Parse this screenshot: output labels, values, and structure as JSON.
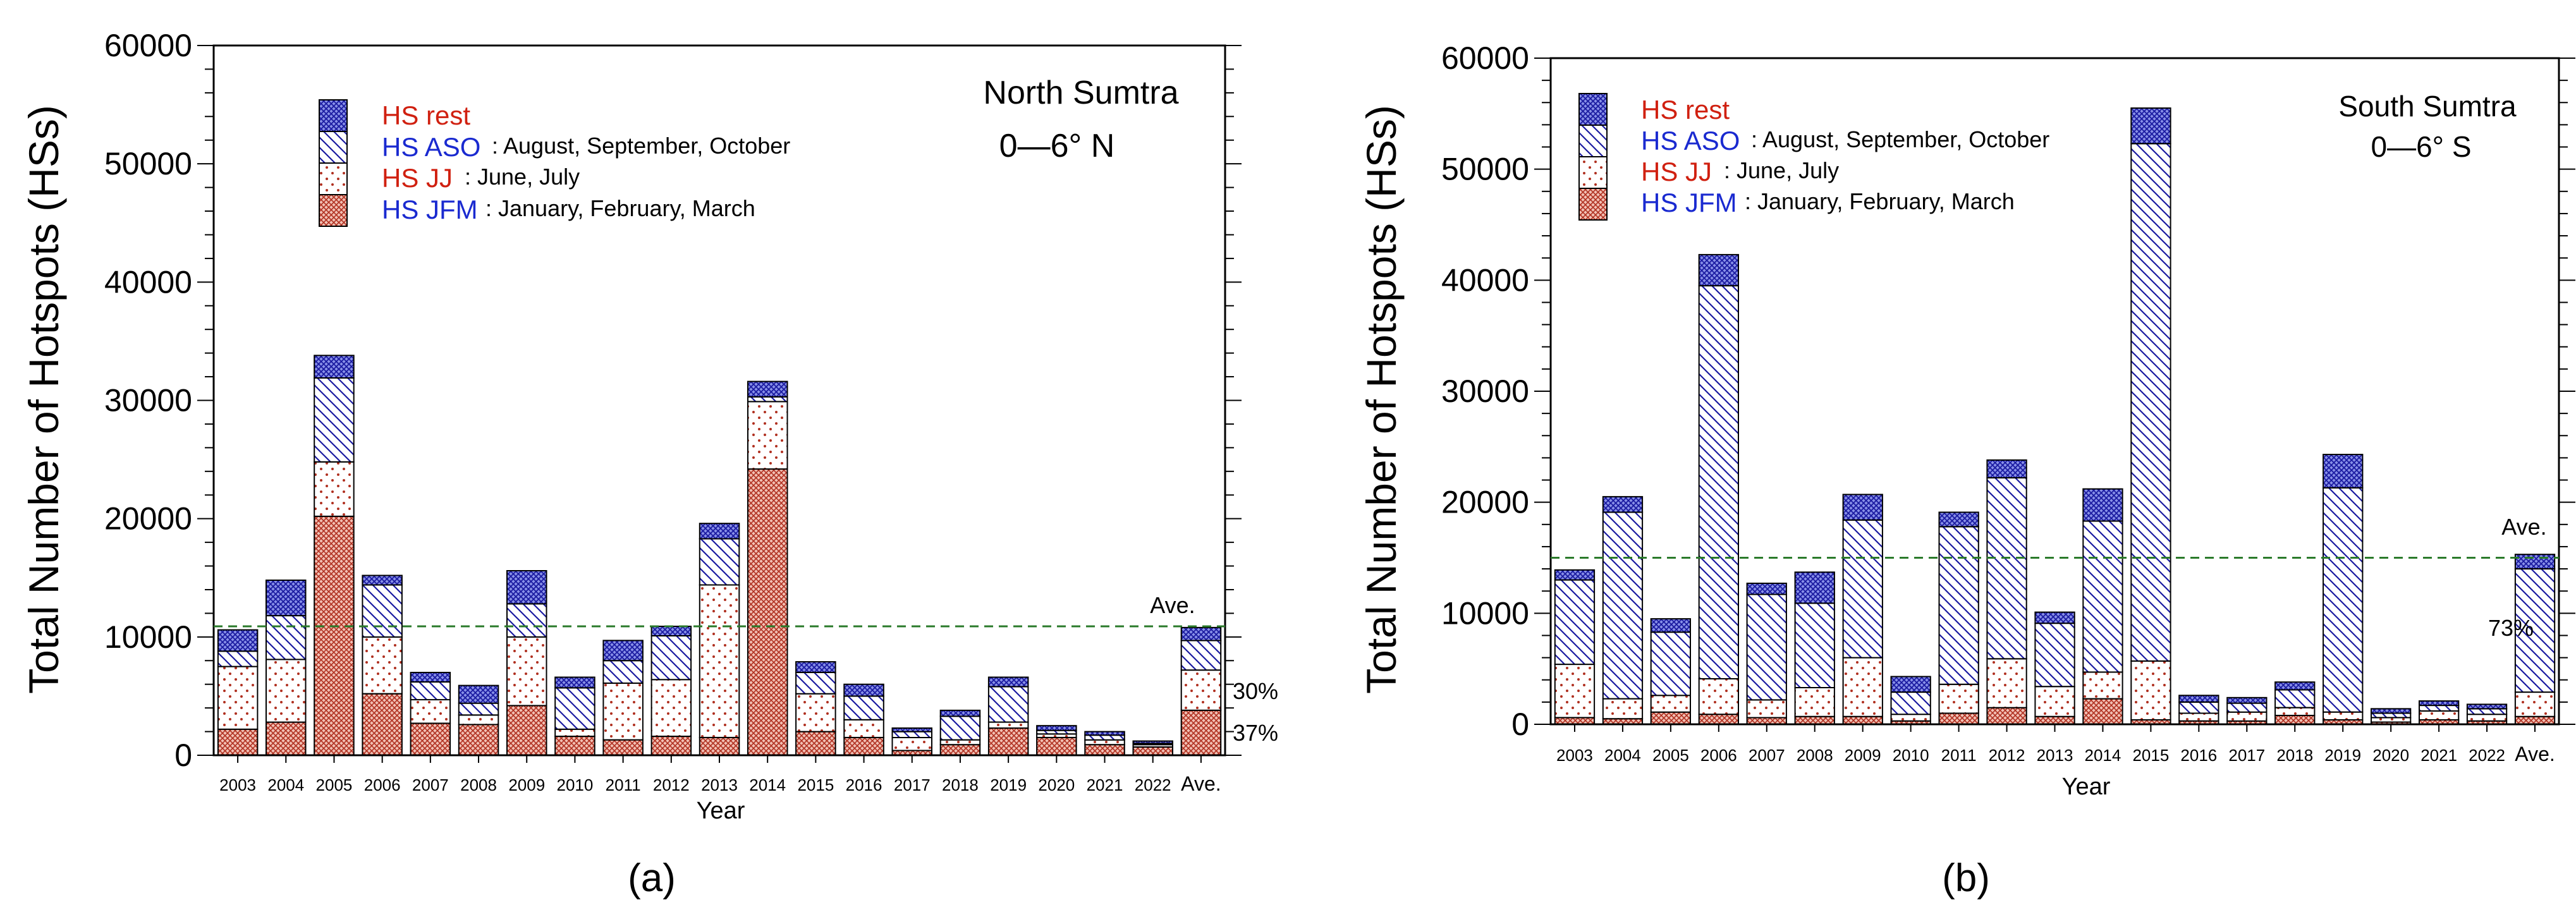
{
  "colors": {
    "jfm_stroke": "#b03020",
    "jfm_fill": "#e8a090",
    "jj_dot": "#b03020",
    "aso": "#1a1aa0",
    "rest": "#1a1aa0",
    "red_label": "#d02010",
    "blue_label": "#1a2ad0",
    "average_line": "#2a7a2a",
    "axis": "#000000"
  },
  "legend": {
    "rest": {
      "key": "HS rest",
      "desc": ""
    },
    "aso": {
      "key": "HS ASO",
      "desc": ": August, September, October"
    },
    "jj": {
      "key": "HS JJ",
      "desc": ": June, July"
    },
    "jfm": {
      "key": "HS JFM",
      "desc": ": January, February, March"
    }
  },
  "chart_data": [
    {
      "type": "bar",
      "stacked": true,
      "panel_label": "(a)",
      "title": "North Sumtra",
      "subtitle": "0—6° N",
      "xlabel": "Year",
      "ylabel": "Total Number of Hotspots (HSs)",
      "ylim": [
        0,
        60000
      ],
      "ytick_labels": [
        "0",
        "10000",
        "20000",
        "30000",
        "40000",
        "50000",
        "60000"
      ],
      "categories": [
        "2003",
        "2004",
        "2005",
        "2006",
        "2007",
        "2008",
        "2009",
        "2010",
        "2011",
        "2012",
        "2013",
        "2014",
        "2015",
        "2016",
        "2017",
        "2018",
        "2019",
        "2020",
        "2021",
        "2022",
        "Ave."
      ],
      "series": [
        {
          "name": "HS JFM",
          "values": [
            2200,
            2800,
            20200,
            5200,
            2700,
            2600,
            4200,
            1600,
            1300,
            1600,
            1500,
            24200,
            2000,
            1500,
            400,
            900,
            2300,
            1500,
            900,
            700,
            3800
          ]
        },
        {
          "name": "HS JJ",
          "values": [
            5300,
            5300,
            4600,
            4800,
            2000,
            800,
            5800,
            600,
            4800,
            4800,
            12900,
            5700,
            3200,
            1500,
            1100,
            400,
            500,
            300,
            400,
            200,
            3400
          ]
        },
        {
          "name": "HS ASO",
          "values": [
            1300,
            3700,
            7100,
            4400,
            1500,
            1000,
            2800,
            3500,
            1900,
            3700,
            3900,
            400,
            1800,
            2000,
            500,
            2000,
            3000,
            300,
            400,
            100,
            2500
          ]
        },
        {
          "name": "HS rest",
          "values": [
            1800,
            3000,
            1900,
            800,
            800,
            1500,
            2800,
            900,
            1700,
            800,
            1300,
            1300,
            900,
            1000,
            300,
            500,
            800,
            400,
            300,
            200,
            1100
          ]
        }
      ],
      "average_line": 10900,
      "average_label": "Ave.",
      "annotations": [
        "30%",
        "37%"
      ]
    },
    {
      "type": "bar",
      "stacked": true,
      "panel_label": "(b)",
      "title": "South Sumtra",
      "subtitle": "0—6° S",
      "xlabel": "Year",
      "ylabel": "Total Number of Hotspots (HSs)",
      "ylim": [
        0,
        60000
      ],
      "ytick_labels": [
        "0",
        "10000",
        "20000",
        "30000",
        "40000",
        "50000",
        "60000"
      ],
      "categories": [
        "2003",
        "2004",
        "2005",
        "2006",
        "2007",
        "2008",
        "2009",
        "2010",
        "2011",
        "2012",
        "2013",
        "2014",
        "2015",
        "2016",
        "2017",
        "2018",
        "2019",
        "2020",
        "2021",
        "2022",
        "Ave."
      ],
      "series": [
        {
          "name": "HS JFM",
          "values": [
            600,
            500,
            1100,
            900,
            600,
            700,
            700,
            300,
            1000,
            1500,
            700,
            2300,
            400,
            300,
            300,
            800,
            400,
            200,
            400,
            300,
            700
          ]
        },
        {
          "name": "HS JJ",
          "values": [
            4800,
            1800,
            1500,
            3200,
            1600,
            2600,
            5300,
            600,
            2600,
            4400,
            2700,
            2400,
            5300,
            700,
            800,
            700,
            700,
            400,
            800,
            600,
            2200
          ]
        },
        {
          "name": "HS ASO",
          "values": [
            7600,
            16800,
            5700,
            35400,
            9500,
            7600,
            12400,
            2000,
            14200,
            16300,
            5700,
            13600,
            46600,
            1000,
            800,
            1600,
            20200,
            400,
            500,
            500,
            11100
          ]
        },
        {
          "name": "HS rest",
          "values": [
            900,
            1400,
            1200,
            2800,
            1000,
            2800,
            2300,
            1400,
            1300,
            1600,
            1000,
            2900,
            3200,
            600,
            500,
            700,
            3000,
            400,
            400,
            400,
            1300
          ]
        }
      ],
      "average_line": 15000,
      "average_label": "Ave.",
      "annotations": [
        "73%"
      ]
    }
  ]
}
